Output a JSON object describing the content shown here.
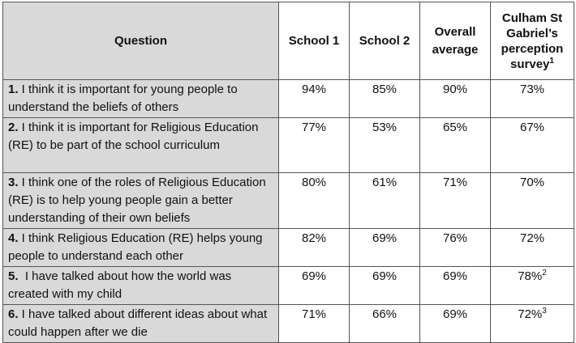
{
  "headers": {
    "question": "Question",
    "school1": "School 1",
    "school2": "School 2",
    "overall": "Overall average",
    "culham": "Culham St Gabriel’s perception survey",
    "culham_sup": "1"
  },
  "rows": [
    {
      "num": "1.",
      "text": " I think it is important for young people to understand the beliefs of others",
      "s1": "94%",
      "s2": "85%",
      "avg": "90%",
      "culham": "73%",
      "culham_sup": ""
    },
    {
      "num": "2.",
      "text": " I think it is important for Religious Education (RE) to be part of the school curriculum",
      "s1": "77%",
      "s2": "53%",
      "avg": "65%",
      "culham": "67%",
      "culham_sup": ""
    },
    {
      "num": "3.",
      "text": " I think one of the roles of Religious Education (RE) is to help young people gain a better understanding of their own beliefs",
      "s1": "80%",
      "s2": "61%",
      "avg": "71%",
      "culham": "70%",
      "culham_sup": ""
    },
    {
      "num": "4.",
      "text": " I think Religious Education (RE) helps young people to understand each other",
      "s1": "82%",
      "s2": "69%",
      "avg": "76%",
      "culham": "72%",
      "culham_sup": ""
    },
    {
      "num": "5.",
      "text": "  I have talked about how the world was created with my child",
      "s1": "69%",
      "s2": "69%",
      "avg": "69%",
      "culham": "78%",
      "culham_sup": "2"
    },
    {
      "num": "6.",
      "text": " I have talked about different ideas about what could happen after we die",
      "s1": "71%",
      "s2": "66%",
      "avg": "69%",
      "culham": "72%",
      "culham_sup": "3"
    }
  ]
}
